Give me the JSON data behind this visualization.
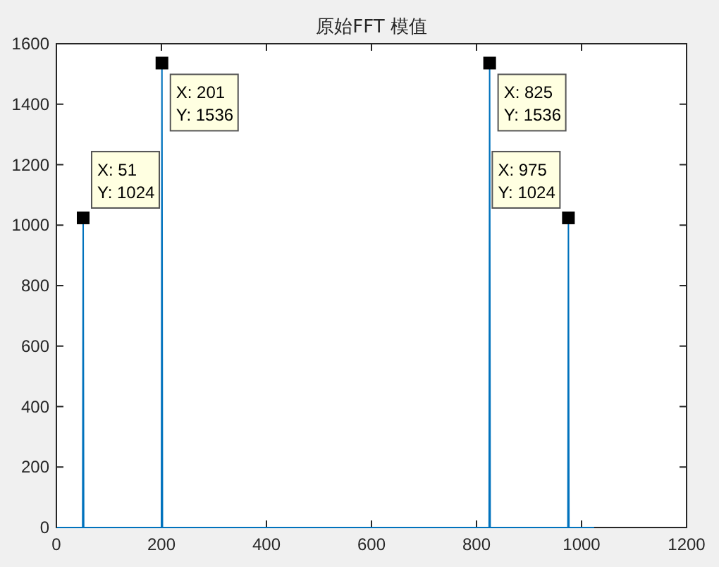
{
  "chart_data": {
    "type": "line",
    "title": "原始FFT 模值",
    "series": [
      {
        "color": "#0072bd",
        "x": [
          1,
          49,
          50,
          51,
          52,
          53,
          199,
          200,
          201,
          202,
          203,
          823,
          824,
          825,
          826,
          827,
          973,
          974,
          975,
          976,
          977,
          1024
        ],
        "values": [
          0,
          0,
          0,
          1024,
          0,
          0,
          0,
          0,
          1536,
          0,
          0,
          0,
          0,
          1536,
          0,
          0,
          0,
          0,
          1024,
          0,
          0,
          0
        ]
      }
    ],
    "xlim": [
      0,
      1200
    ],
    "ylim": [
      0,
      1600
    ],
    "xticks": [
      0,
      200,
      400,
      600,
      800,
      1000,
      1200
    ],
    "yticks": [
      0,
      200,
      400,
      600,
      800,
      1000,
      1200,
      1400,
      1600
    ],
    "annotations": [
      {
        "text": "X: 51\nY: 1024",
        "x": 51,
        "y": 1024
      },
      {
        "text": "X: 201\nY: 1536",
        "x": 201,
        "y": 1536
      },
      {
        "text": "X: 825\nY: 1536",
        "x": 825,
        "y": 1536
      },
      {
        "text": "X: 975\nY: 1024",
        "x": 975,
        "y": 1024
      }
    ],
    "grid": false,
    "marker": "none",
    "line_style": "solid"
  }
}
